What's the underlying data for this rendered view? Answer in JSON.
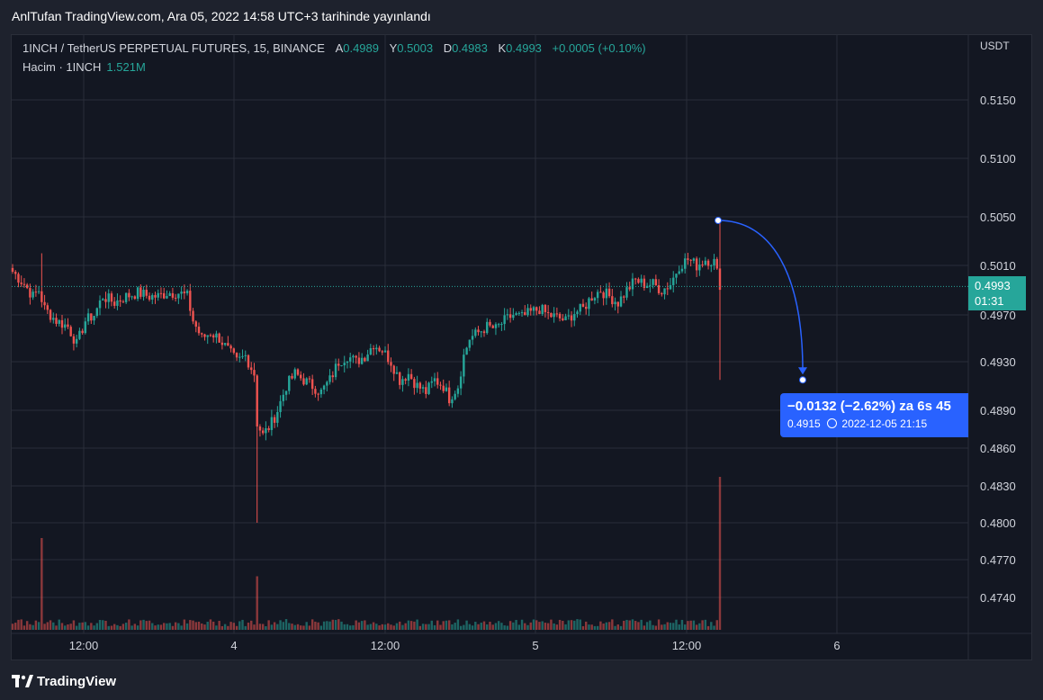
{
  "header": {
    "published": "AnlTufan TradingView.com, Ara 05, 2022 14:58 UTC+3 tarihinde yayınlandı"
  },
  "legend": {
    "symbol": "1INCH / TetherUS PERPETUAL FUTURES, 15, BINANCE",
    "open_label": "A",
    "open_value": "0.4989",
    "high_label": "Y",
    "high_value": "0.5003",
    "low_label": "D",
    "low_value": "0.4983",
    "close_label": "K",
    "close_value": "0.4993",
    "change": "+0.0005 (+0.10%)",
    "volume_label": "Hacim · 1INCH",
    "volume_value": "1.521M"
  },
  "price_tag": {
    "price": "0.4993",
    "countdown": "01:31"
  },
  "projection": {
    "change_text": "−0.0132 (−2.62%) za 6s 45",
    "target_price": "0.4915",
    "target_time": "2022-12-05  21:15",
    "start_price": 0.5047,
    "end_price": 0.4915
  },
  "branding": {
    "name": "TradingView"
  },
  "colors": {
    "up": "#26a69a",
    "down": "#ef5350",
    "accent": "#2962ff",
    "background": "#131722",
    "grid": "#2a2e39"
  },
  "chart_data": {
    "type": "candlestick",
    "currency": "USDT",
    "y_ticks": [
      "0.5150",
      "0.5100",
      "0.5050",
      "0.5010",
      "0.4970",
      "0.4930",
      "0.4890",
      "0.4860",
      "0.4830",
      "0.4800",
      "0.4770",
      "0.4740"
    ],
    "x_ticks": [
      "12:00",
      "4",
      "12:00",
      "5",
      "12:00",
      "6"
    ],
    "current_price": 0.4993,
    "grid": true,
    "path_points": [
      [
        0,
        0.5005
      ],
      [
        4,
        0.4995
      ],
      [
        7,
        0.4985
      ],
      [
        9,
        0.499
      ],
      [
        11,
        0.4975
      ],
      [
        15,
        0.4965
      ],
      [
        19,
        0.496
      ],
      [
        22,
        0.4945
      ],
      [
        25,
        0.4965
      ],
      [
        28,
        0.497
      ],
      [
        31,
        0.4985
      ],
      [
        35,
        0.498
      ],
      [
        39,
        0.4985
      ],
      [
        43,
        0.4988
      ],
      [
        47,
        0.4985
      ],
      [
        50,
        0.4985
      ],
      [
        53,
        0.4988
      ],
      [
        57,
        0.4988
      ],
      [
        60,
        0.4985
      ],
      [
        62,
        0.4965
      ],
      [
        65,
        0.495
      ],
      [
        68,
        0.4955
      ],
      [
        71,
        0.495
      ],
      [
        74,
        0.494
      ],
      [
        77,
        0.493
      ],
      [
        80,
        0.4935
      ],
      [
        83,
        0.492
      ],
      [
        84,
        0.488
      ],
      [
        86,
        0.487
      ],
      [
        89,
        0.488
      ],
      [
        91,
        0.489
      ],
      [
        94,
        0.491
      ],
      [
        97,
        0.492
      ],
      [
        100,
        0.4915
      ],
      [
        103,
        0.491
      ],
      [
        106,
        0.4905
      ],
      [
        109,
        0.4915
      ],
      [
        112,
        0.493
      ],
      [
        115,
        0.4935
      ],
      [
        118,
        0.493
      ],
      [
        121,
        0.4935
      ],
      [
        124,
        0.4945
      ],
      [
        127,
        0.494
      ],
      [
        130,
        0.493
      ],
      [
        133,
        0.4915
      ],
      [
        136,
        0.492
      ],
      [
        139,
        0.491
      ],
      [
        142,
        0.4905
      ],
      [
        145,
        0.4915
      ],
      [
        148,
        0.491
      ],
      [
        150,
        0.49
      ],
      [
        153,
        0.491
      ],
      [
        155,
        0.4935
      ],
      [
        157,
        0.495
      ],
      [
        160,
        0.4955
      ],
      [
        163,
        0.496
      ],
      [
        166,
        0.4958
      ],
      [
        169,
        0.4965
      ],
      [
        172,
        0.497
      ],
      [
        175,
        0.4968
      ],
      [
        178,
        0.4972
      ],
      [
        181,
        0.4975
      ],
      [
        184,
        0.497
      ],
      [
        187,
        0.4968
      ],
      [
        190,
        0.4965
      ],
      [
        193,
        0.4972
      ],
      [
        196,
        0.4975
      ],
      [
        199,
        0.4985
      ],
      [
        202,
        0.499
      ],
      [
        205,
        0.4985
      ],
      [
        208,
        0.498
      ],
      [
        211,
        0.499
      ],
      [
        214,
        0.4998
      ],
      [
        217,
        0.4995
      ],
      [
        220,
        0.4995
      ],
      [
        223,
        0.499
      ],
      [
        226,
        0.4995
      ],
      [
        229,
        0.501
      ],
      [
        232,
        0.5015
      ],
      [
        235,
        0.501
      ],
      [
        238,
        0.5015
      ],
      [
        241,
        0.5013
      ],
      [
        243,
        0.4995
      ]
    ],
    "volume_spikes": [
      [
        10,
        0.6
      ],
      [
        84,
        0.35
      ],
      [
        243,
        1.0
      ]
    ]
  }
}
